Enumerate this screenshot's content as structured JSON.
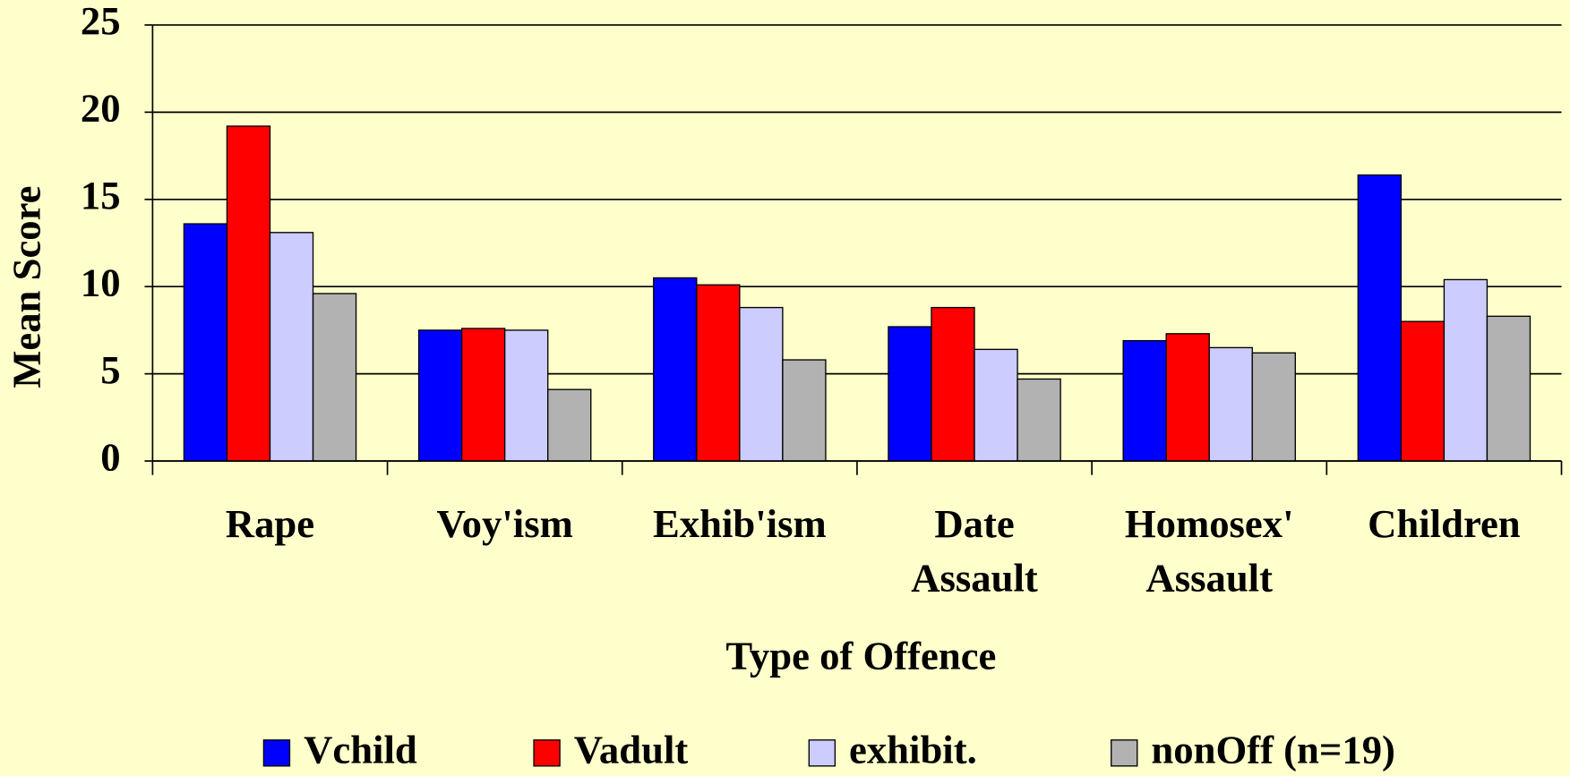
{
  "chart_data": {
    "type": "bar",
    "x_label": "Type of Offence",
    "y_label": "Mean Score",
    "categories": [
      "Rape",
      "Voy'ism",
      "Exhib'ism",
      "Date\nAssault",
      "Homosex'\nAssault",
      "Children"
    ],
    "series": [
      {
        "name": "Vchild",
        "color": "#0000ff",
        "values": [
          13.6,
          7.5,
          10.5,
          7.7,
          6.9,
          16.4
        ]
      },
      {
        "name": "Vadult",
        "color": "#ff0000",
        "values": [
          19.2,
          7.6,
          10.1,
          8.8,
          7.3,
          8.0
        ]
      },
      {
        "name": "exhibit.",
        "color": "#ccccff",
        "values": [
          13.1,
          7.5,
          8.8,
          6.4,
          6.5,
          10.4
        ]
      },
      {
        "name": "nonOff (n=19)",
        "color": "#b2b2b2",
        "values": [
          9.6,
          4.1,
          5.8,
          4.7,
          6.2,
          8.3
        ]
      }
    ],
    "ylim": [
      0,
      25
    ],
    "yticks": [
      0,
      5,
      10,
      15,
      20,
      25
    ],
    "grid": true,
    "legend": "bottom"
  }
}
